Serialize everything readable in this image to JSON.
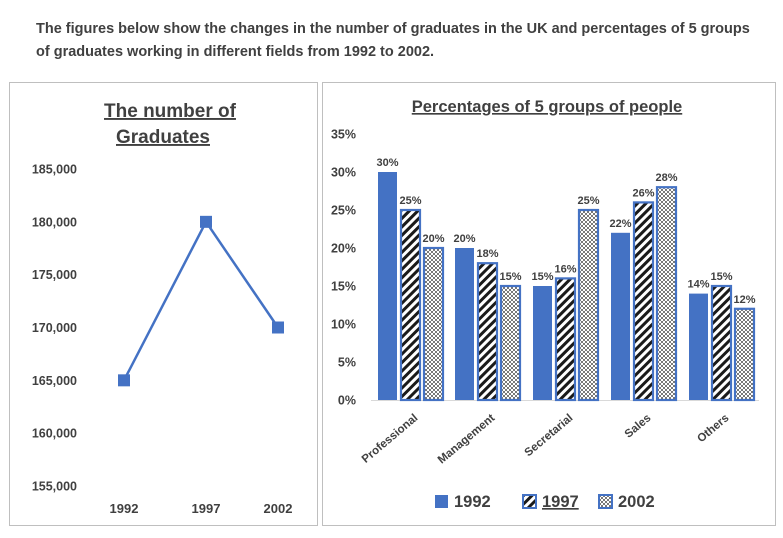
{
  "caption": "The figures below show the changes in the number of graduates in the UK and percentages of 5 groups of graduates working in different fields from 1992 to 2002.",
  "chart_data": [
    {
      "type": "line",
      "title_line1": "The number of",
      "title_line2": "Graduates",
      "x": [
        "1992",
        "1997",
        "2002"
      ],
      "values": [
        165000,
        180000,
        170000
      ],
      "ylim": [
        155000,
        185000
      ],
      "yticks": [
        "155,000",
        "160,000",
        "165,000",
        "170,000",
        "175,000",
        "180,000",
        "185,000"
      ],
      "color": "#4472c4"
    },
    {
      "type": "bar",
      "title": "Percentages of 5 groups of people",
      "categories": [
        "Professional",
        "Management",
        "Secretarial",
        "Sales",
        "Others"
      ],
      "series": [
        {
          "name": "1992",
          "values": [
            30,
            20,
            15,
            22,
            14
          ],
          "labels": [
            "30%",
            "20%",
            "15%",
            "22%",
            "14%"
          ]
        },
        {
          "name": "1997",
          "values": [
            25,
            18,
            16,
            26,
            15
          ],
          "labels": [
            "25%",
            "18%",
            "16%",
            "26%",
            "15%"
          ]
        },
        {
          "name": "2002",
          "values": [
            20,
            15,
            25,
            28,
            12
          ],
          "labels": [
            "20%",
            "15%",
            "25%",
            "28%",
            "12%"
          ]
        }
      ],
      "ylim": [
        0,
        35
      ],
      "yticks": [
        "0%",
        "5%",
        "10%",
        "15%",
        "20%",
        "25%",
        "30%",
        "35%"
      ],
      "color": "#4472c4"
    }
  ]
}
